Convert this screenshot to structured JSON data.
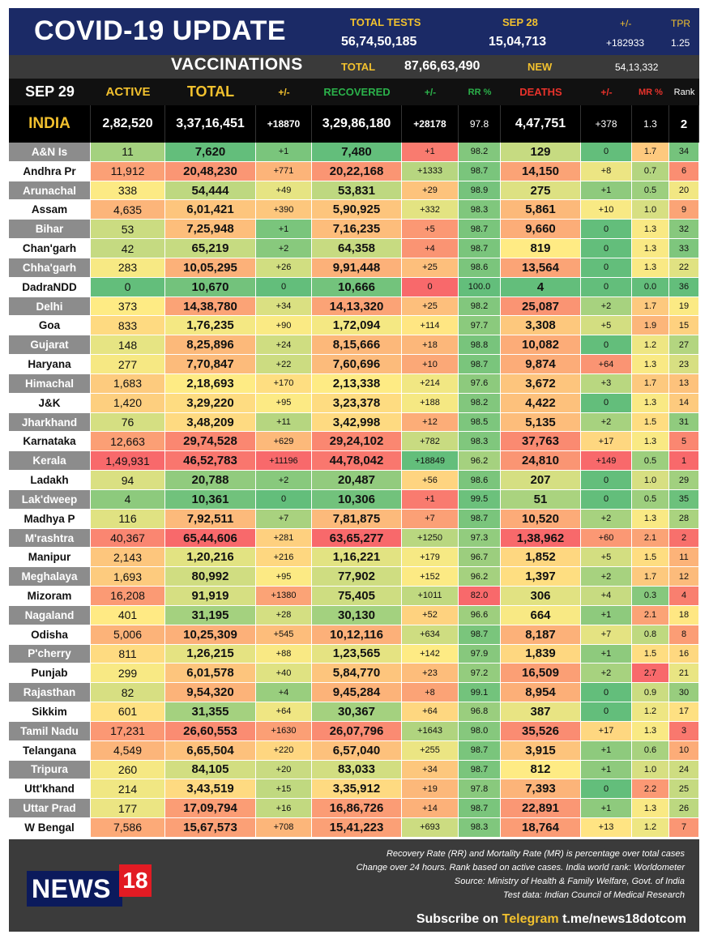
{
  "header": {
    "title": "COVID-19 UPDATE",
    "total_tests_label": "TOTAL TESTS",
    "total_tests_value": "56,74,50,185",
    "date_label": "SEP 28",
    "date_tests_value": "15,04,713",
    "change_label": "+/-",
    "change_value": "+182933",
    "tpr_label": "TPR",
    "tpr_value": "1.25"
  },
  "vaccinations": {
    "title": "VACCINATIONS",
    "total_label": "TOTAL",
    "total_value": "87,66,63,490",
    "new_label": "NEW",
    "new_value": "54,13,332"
  },
  "columns": {
    "date": "SEP 29",
    "active": "ACTIVE",
    "total": "TOTAL",
    "change1": "+/-",
    "recovered": "RECOVERED",
    "change2": "+/-",
    "rr": "RR %",
    "deaths": "DEATHS",
    "change3": "+/-",
    "mr": "MR %",
    "rank": "Rank"
  },
  "india": {
    "name": "INDIA",
    "active": "2,82,520",
    "total": "3,37,16,451",
    "change1": "+18870",
    "recovered": "3,29,86,180",
    "change2": "+28178",
    "rr": "97.8",
    "deaths": "4,47,751",
    "change3": "+378",
    "mr": "1.3",
    "rank": "2"
  },
  "rows": [
    {
      "name": "A&N Is",
      "active": "11",
      "total": "7,620",
      "c1": "+1",
      "recovered": "7,480",
      "c2": "+1",
      "rr": "98.2",
      "deaths": "129",
      "c3": "0",
      "mr": "1.7",
      "rank": "34"
    },
    {
      "name": "Andhra Pr",
      "active": "11,912",
      "total": "20,48,230",
      "c1": "+771",
      "recovered": "20,22,168",
      "c2": "+1333",
      "rr": "98.7",
      "deaths": "14,150",
      "c3": "+8",
      "mr": "0.7",
      "rank": "6"
    },
    {
      "name": "Arunachal",
      "active": "338",
      "total": "54,444",
      "c1": "+49",
      "recovered": "53,831",
      "c2": "+29",
      "rr": "98.9",
      "deaths": "275",
      "c3": "+1",
      "mr": "0.5",
      "rank": "20"
    },
    {
      "name": "Assam",
      "active": "4,635",
      "total": "6,01,421",
      "c1": "+390",
      "recovered": "5,90,925",
      "c2": "+332",
      "rr": "98.3",
      "deaths": "5,861",
      "c3": "+10",
      "mr": "1.0",
      "rank": "9"
    },
    {
      "name": "Bihar",
      "active": "53",
      "total": "7,25,948",
      "c1": "+1",
      "recovered": "7,16,235",
      "c2": "+5",
      "rr": "98.7",
      "deaths": "9,660",
      "c3": "0",
      "mr": "1.3",
      "rank": "32"
    },
    {
      "name": "Chan'garh",
      "active": "42",
      "total": "65,219",
      "c1": "+2",
      "recovered": "64,358",
      "c2": "+4",
      "rr": "98.7",
      "deaths": "819",
      "c3": "0",
      "mr": "1.3",
      "rank": "33"
    },
    {
      "name": "Chha'garh",
      "active": "283",
      "total": "10,05,295",
      "c1": "+26",
      "recovered": "9,91,448",
      "c2": "+25",
      "rr": "98.6",
      "deaths": "13,564",
      "c3": "0",
      "mr": "1.3",
      "rank": "22"
    },
    {
      "name": "DadraNDD",
      "active": "0",
      "total": "10,670",
      "c1": "0",
      "recovered": "10,666",
      "c2": "0",
      "rr": "100.0",
      "deaths": "4",
      "c3": "0",
      "mr": "0.0",
      "rank": "36"
    },
    {
      "name": "Delhi",
      "active": "373",
      "total": "14,38,780",
      "c1": "+34",
      "recovered": "14,13,320",
      "c2": "+25",
      "rr": "98.2",
      "deaths": "25,087",
      "c3": "+2",
      "mr": "1.7",
      "rank": "19"
    },
    {
      "name": "Goa",
      "active": "833",
      "total": "1,76,235",
      "c1": "+90",
      "recovered": "1,72,094",
      "c2": "+114",
      "rr": "97.7",
      "deaths": "3,308",
      "c3": "+5",
      "mr": "1.9",
      "rank": "15"
    },
    {
      "name": "Gujarat",
      "active": "148",
      "total": "8,25,896",
      "c1": "+24",
      "recovered": "8,15,666",
      "c2": "+18",
      "rr": "98.8",
      "deaths": "10,082",
      "c3": "0",
      "mr": "1.2",
      "rank": "27"
    },
    {
      "name": "Haryana",
      "active": "277",
      "total": "7,70,847",
      "c1": "+22",
      "recovered": "7,60,696",
      "c2": "+10",
      "rr": "98.7",
      "deaths": "9,874",
      "c3": "+64",
      "mr": "1.3",
      "rank": "23"
    },
    {
      "name": "Himachal",
      "active": "1,683",
      "total": "2,18,693",
      "c1": "+170",
      "recovered": "2,13,338",
      "c2": "+214",
      "rr": "97.6",
      "deaths": "3,672",
      "c3": "+3",
      "mr": "1.7",
      "rank": "13"
    },
    {
      "name": "J&K",
      "active": "1,420",
      "total": "3,29,220",
      "c1": "+95",
      "recovered": "3,23,378",
      "c2": "+188",
      "rr": "98.2",
      "deaths": "4,422",
      "c3": "0",
      "mr": "1.3",
      "rank": "14"
    },
    {
      "name": "Jharkhand",
      "active": "76",
      "total": "3,48,209",
      "c1": "+11",
      "recovered": "3,42,998",
      "c2": "+12",
      "rr": "98.5",
      "deaths": "5,135",
      "c3": "+2",
      "mr": "1.5",
      "rank": "31"
    },
    {
      "name": "Karnataka",
      "active": "12,663",
      "total": "29,74,528",
      "c1": "+629",
      "recovered": "29,24,102",
      "c2": "+782",
      "rr": "98.3",
      "deaths": "37,763",
      "c3": "+17",
      "mr": "1.3",
      "rank": "5"
    },
    {
      "name": "Kerala",
      "active": "1,49,931",
      "total": "46,52,783",
      "c1": "+11196",
      "recovered": "44,78,042",
      "c2": "+18849",
      "rr": "96.2",
      "deaths": "24,810",
      "c3": "+149",
      "mr": "0.5",
      "rank": "1"
    },
    {
      "name": "Ladakh",
      "active": "94",
      "total": "20,788",
      "c1": "+2",
      "recovered": "20,487",
      "c2": "+56",
      "rr": "98.6",
      "deaths": "207",
      "c3": "0",
      "mr": "1.0",
      "rank": "29"
    },
    {
      "name": "Lak'dweep",
      "active": "4",
      "total": "10,361",
      "c1": "0",
      "recovered": "10,306",
      "c2": "+1",
      "rr": "99.5",
      "deaths": "51",
      "c3": "0",
      "mr": "0.5",
      "rank": "35"
    },
    {
      "name": "Madhya P",
      "active": "116",
      "total": "7,92,511",
      "c1": "+7",
      "recovered": "7,81,875",
      "c2": "+7",
      "rr": "98.7",
      "deaths": "10,520",
      "c3": "+2",
      "mr": "1.3",
      "rank": "28"
    },
    {
      "name": "M'rashtra",
      "active": "40,367",
      "total": "65,44,606",
      "c1": "+281",
      "recovered": "63,65,277",
      "c2": "+1250",
      "rr": "97.3",
      "deaths": "1,38,962",
      "c3": "+60",
      "mr": "2.1",
      "rank": "2"
    },
    {
      "name": "Manipur",
      "active": "2,143",
      "total": "1,20,216",
      "c1": "+216",
      "recovered": "1,16,221",
      "c2": "+179",
      "rr": "96.7",
      "deaths": "1,852",
      "c3": "+5",
      "mr": "1.5",
      "rank": "11"
    },
    {
      "name": "Meghalaya",
      "active": "1,693",
      "total": "80,992",
      "c1": "+95",
      "recovered": "77,902",
      "c2": "+152",
      "rr": "96.2",
      "deaths": "1,397",
      "c3": "+2",
      "mr": "1.7",
      "rank": "12"
    },
    {
      "name": "Mizoram",
      "active": "16,208",
      "total": "91,919",
      "c1": "+1380",
      "recovered": "75,405",
      "c2": "+1011",
      "rr": "82.0",
      "deaths": "306",
      "c3": "+4",
      "mr": "0.3",
      "rank": "4"
    },
    {
      "name": "Nagaland",
      "active": "401",
      "total": "31,195",
      "c1": "+28",
      "recovered": "30,130",
      "c2": "+52",
      "rr": "96.6",
      "deaths": "664",
      "c3": "+1",
      "mr": "2.1",
      "rank": "18"
    },
    {
      "name": "Odisha",
      "active": "5,006",
      "total": "10,25,309",
      "c1": "+545",
      "recovered": "10,12,116",
      "c2": "+634",
      "rr": "98.7",
      "deaths": "8,187",
      "c3": "+7",
      "mr": "0.8",
      "rank": "8"
    },
    {
      "name": "P'cherry",
      "active": "811",
      "total": "1,26,215",
      "c1": "+88",
      "recovered": "1,23,565",
      "c2": "+142",
      "rr": "97.9",
      "deaths": "1,839",
      "c3": "+1",
      "mr": "1.5",
      "rank": "16"
    },
    {
      "name": "Punjab",
      "active": "299",
      "total": "6,01,578",
      "c1": "+40",
      "recovered": "5,84,770",
      "c2": "+23",
      "rr": "97.2",
      "deaths": "16,509",
      "c3": "+2",
      "mr": "2.7",
      "rank": "21"
    },
    {
      "name": "Rajasthan",
      "active": "82",
      "total": "9,54,320",
      "c1": "+4",
      "recovered": "9,45,284",
      "c2": "+8",
      "rr": "99.1",
      "deaths": "8,954",
      "c3": "0",
      "mr": "0.9",
      "rank": "30"
    },
    {
      "name": "Sikkim",
      "active": "601",
      "total": "31,355",
      "c1": "+64",
      "recovered": "30,367",
      "c2": "+64",
      "rr": "96.8",
      "deaths": "387",
      "c3": "0",
      "mr": "1.2",
      "rank": "17"
    },
    {
      "name": "Tamil Nadu",
      "active": "17,231",
      "total": "26,60,553",
      "c1": "+1630",
      "recovered": "26,07,796",
      "c2": "+1643",
      "rr": "98.0",
      "deaths": "35,526",
      "c3": "+17",
      "mr": "1.3",
      "rank": "3"
    },
    {
      "name": "Telangana",
      "active": "4,549",
      "total": "6,65,504",
      "c1": "+220",
      "recovered": "6,57,040",
      "c2": "+255",
      "rr": "98.7",
      "deaths": "3,915",
      "c3": "+1",
      "mr": "0.6",
      "rank": "10"
    },
    {
      "name": "Tripura",
      "active": "260",
      "total": "84,105",
      "c1": "+20",
      "recovered": "83,033",
      "c2": "+34",
      "rr": "98.7",
      "deaths": "812",
      "c3": "+1",
      "mr": "1.0",
      "rank": "24"
    },
    {
      "name": "Utt'khand",
      "active": "214",
      "total": "3,43,519",
      "c1": "+15",
      "recovered": "3,35,912",
      "c2": "+19",
      "rr": "97.8",
      "deaths": "7,393",
      "c3": "0",
      "mr": "2.2",
      "rank": "25"
    },
    {
      "name": "Uttar Prad",
      "active": "177",
      "total": "17,09,794",
      "c1": "+16",
      "recovered": "16,86,726",
      "c2": "+14",
      "rr": "98.7",
      "deaths": "22,891",
      "c3": "+1",
      "mr": "1.3",
      "rank": "26"
    },
    {
      "name": "W Bengal",
      "active": "7,586",
      "total": "15,67,573",
      "c1": "+708",
      "recovered": "15,41,223",
      "c2": "+693",
      "rr": "98.3",
      "deaths": "18,764",
      "c3": "+13",
      "mr": "1.2",
      "rank": "7"
    }
  ],
  "footer": {
    "note1": "Recovery Rate (RR) and Mortality Rate (MR) is percentage over total cases",
    "note2": "Change over 24 hours. Rank based on active cases. India world rank: Worldometer",
    "note3": "Source: Ministry of Health & Family Welfare, Govt. of India",
    "note4": "Test data: Indian Council of Medical Research",
    "subscribe_prefix": "Subscribe on",
    "subscribe_platform": "Telegram",
    "subscribe_link": "t.me/news18dotcom",
    "logo_text": "NEWS",
    "logo_number": "18"
  },
  "colors": {
    "header_bg": "#1b2a66",
    "accent_yellow": "#f2c12e",
    "recovered_green": "#2bb14a",
    "deaths_red": "#e8322b",
    "logo_red": "#e21b23"
  }
}
